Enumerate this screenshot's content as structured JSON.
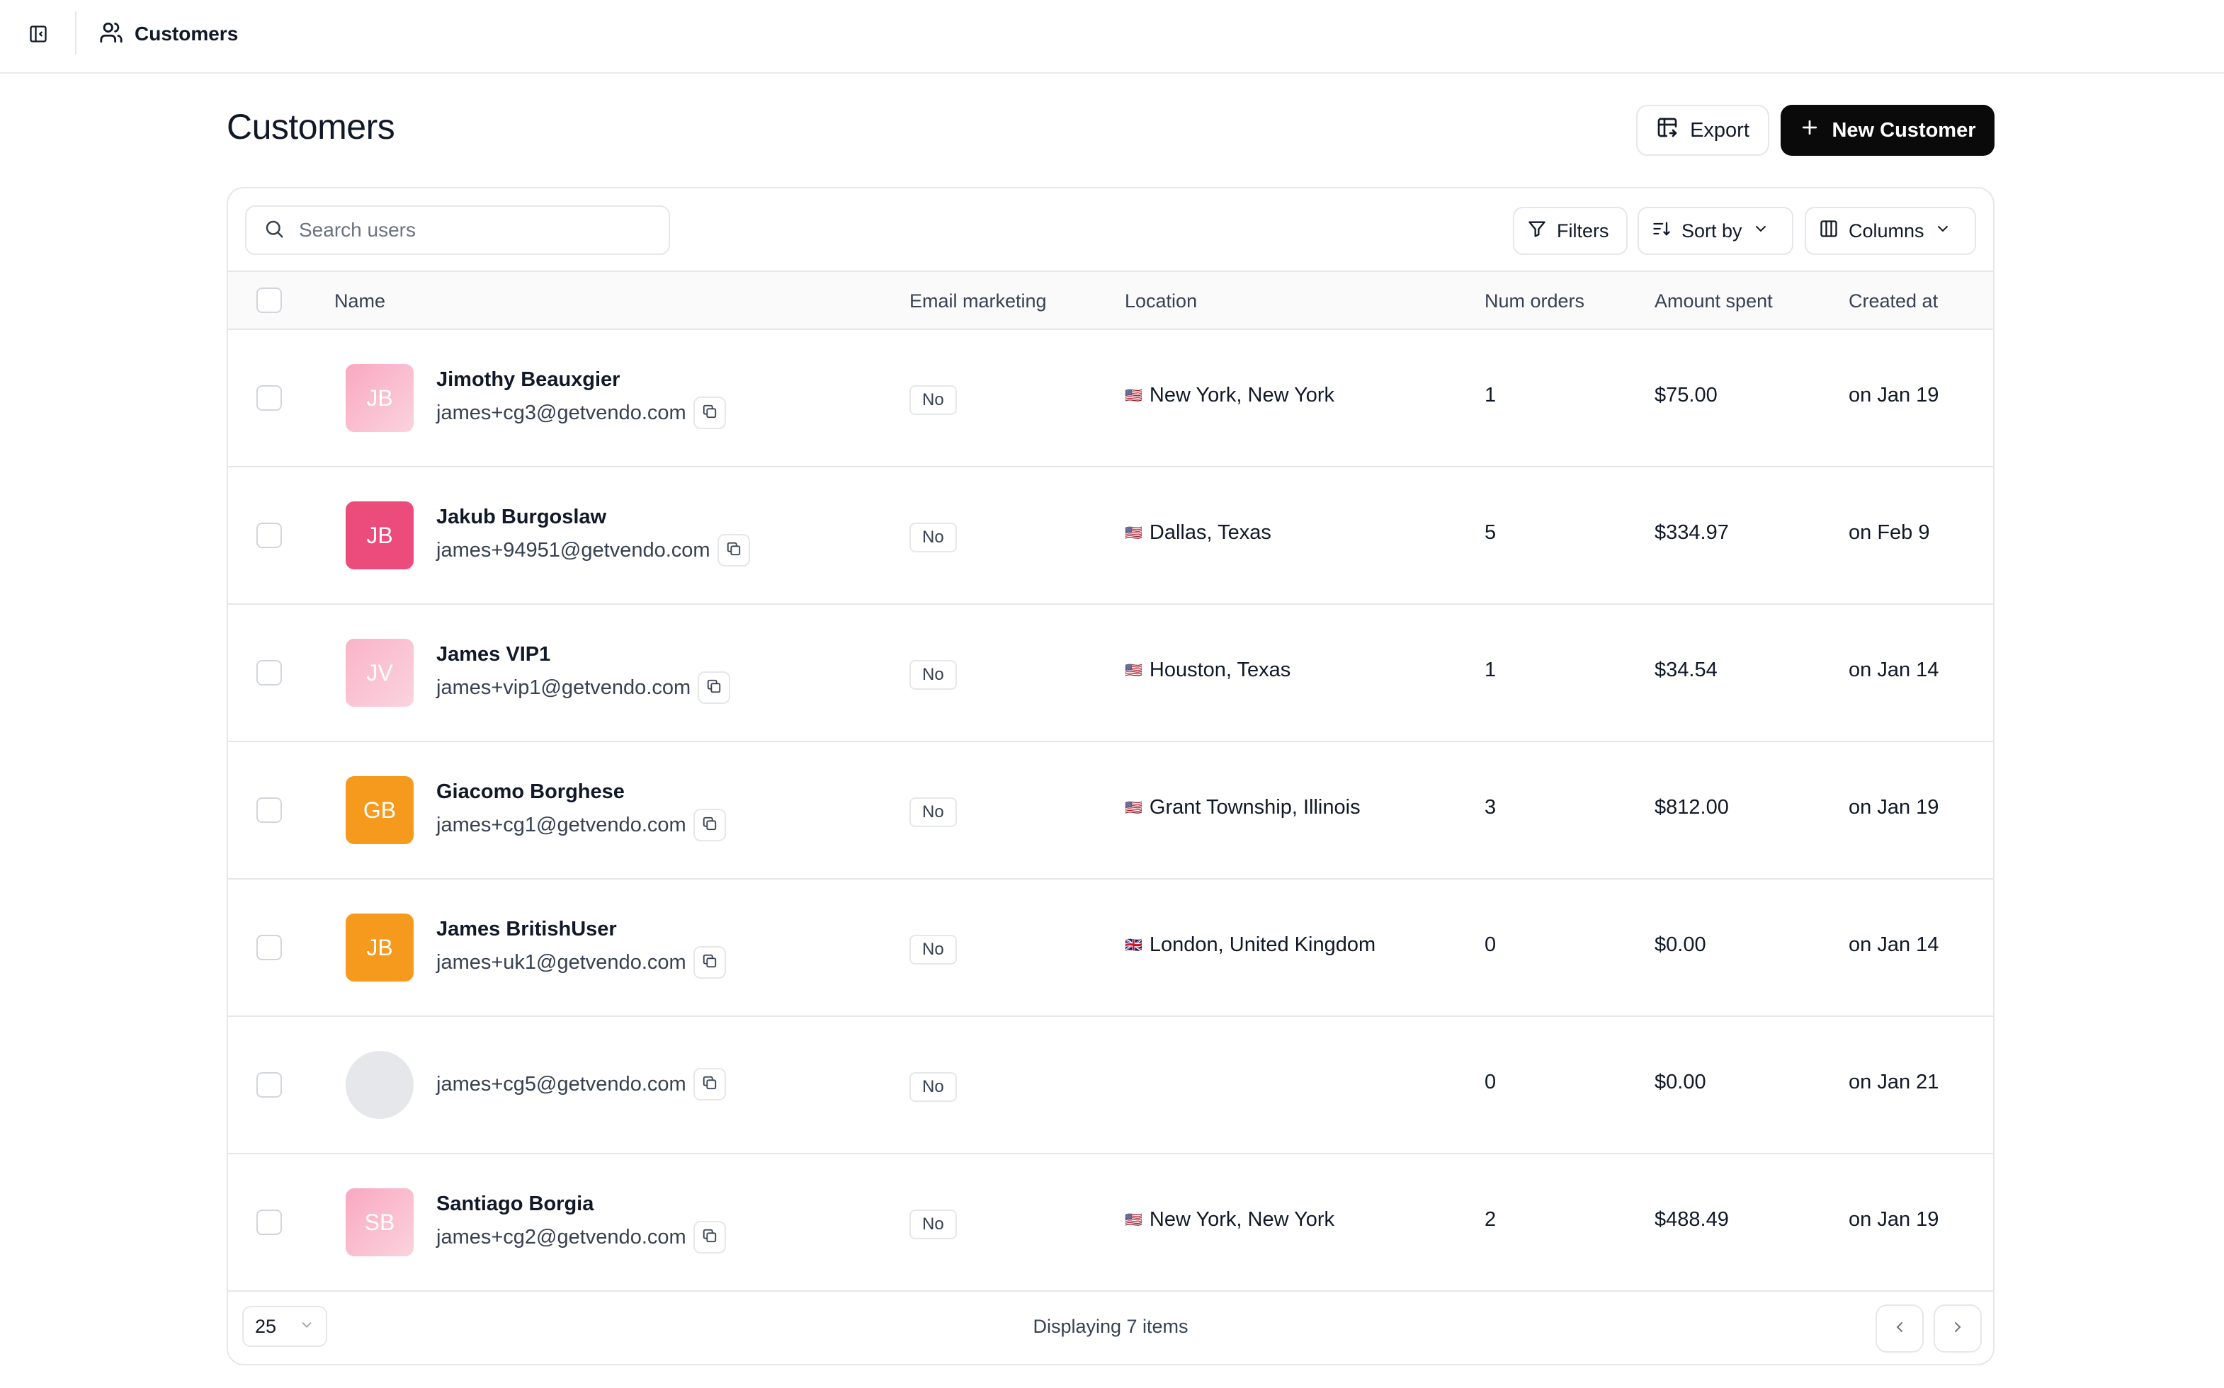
{
  "topbar": {
    "breadcrumb_label": "Customers",
    "sidebar_toggle_icon": "sidebar-toggle-icon",
    "breadcrumb_icon": "users-icon"
  },
  "page": {
    "title": "Customers",
    "export_label": "Export",
    "new_customer_label": "New Customer"
  },
  "toolbar": {
    "search_placeholder": "Search users",
    "filters_label": "Filters",
    "sort_label": "Sort by",
    "columns_label": "Columns"
  },
  "table": {
    "headers": {
      "name": "Name",
      "email_marketing": "Email marketing",
      "location": "Location",
      "num_orders": "Num orders",
      "amount_spent": "Amount spent",
      "created_at": "Created at"
    },
    "rows": [
      {
        "initials": "JB",
        "avatar_color": "#f9a8c0",
        "name": "Jimothy Beauxgier",
        "email": "james+cg3@getvendo.com",
        "marketing": "No",
        "flag": "🇺🇸",
        "location": "New York, New York",
        "orders": "1",
        "amount": "$75.00",
        "created": "on Jan 19"
      },
      {
        "initials": "JB",
        "avatar_color": "#ec4c7c",
        "name": "Jakub Burgoslaw",
        "email": "james+94951@getvendo.com",
        "marketing": "No",
        "flag": "🇺🇸",
        "location": "Dallas, Texas",
        "orders": "5",
        "amount": "$334.97",
        "created": "on Feb 9"
      },
      {
        "initials": "JV",
        "avatar_color": "#f9b4c8",
        "name": "James VIP1",
        "email": "james+vip1@getvendo.com",
        "marketing": "No",
        "flag": "🇺🇸",
        "location": "Houston, Texas",
        "orders": "1",
        "amount": "$34.54",
        "created": "on Jan 14"
      },
      {
        "initials": "GB",
        "avatar_color": "#f59a1c",
        "name": "Giacomo Borghese",
        "email": "james+cg1@getvendo.com",
        "marketing": "No",
        "flag": "🇺🇸",
        "location": "Grant Township, Illinois",
        "orders": "3",
        "amount": "$812.00",
        "created": "on Jan 19"
      },
      {
        "initials": "JB",
        "avatar_color": "#f59a1c",
        "name": "James BritishUser",
        "email": "james+uk1@getvendo.com",
        "marketing": "No",
        "flag": "🇬🇧",
        "location": "London, United Kingdom",
        "orders": "0",
        "amount": "$0.00",
        "created": "on Jan 14"
      },
      {
        "initials": "",
        "avatar_color": "#e5e7eb",
        "name": "",
        "email": "james+cg5@getvendo.com",
        "marketing": "No",
        "flag": "",
        "location": "",
        "orders": "0",
        "amount": "$0.00",
        "created": "on Jan 21"
      },
      {
        "initials": "SB",
        "avatar_color": "#f9a8c0",
        "name": "Santiago Borgia",
        "email": "james+cg2@getvendo.com",
        "marketing": "No",
        "flag": "🇺🇸",
        "location": "New York, New York",
        "orders": "2",
        "amount": "$488.49",
        "created": "on Jan 19"
      }
    ]
  },
  "footer": {
    "page_size": "25",
    "display_count": "Displaying 7 items"
  }
}
